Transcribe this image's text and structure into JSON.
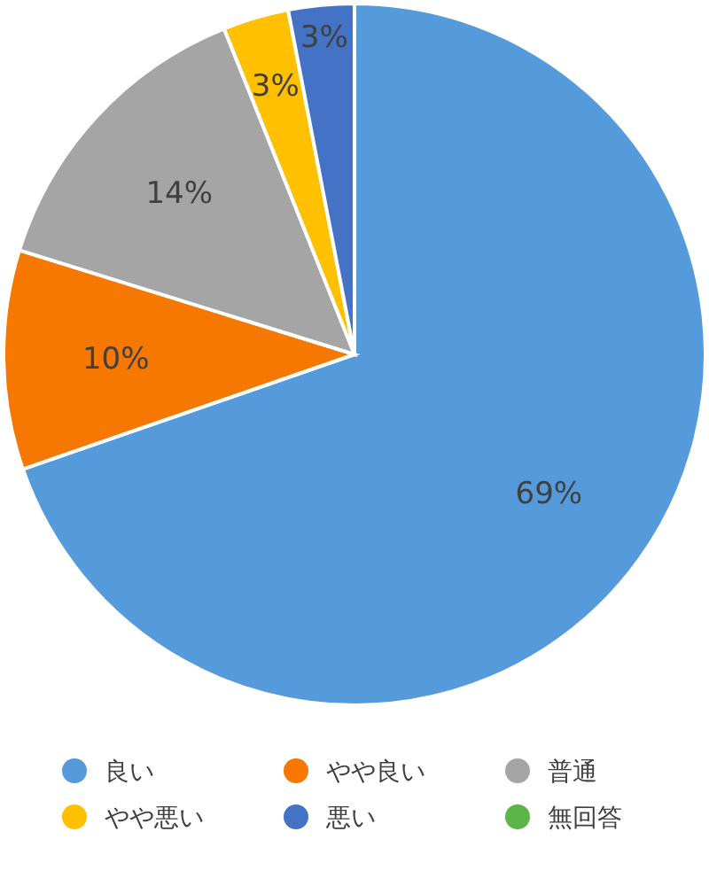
{
  "chart_data": {
    "type": "pie",
    "categories": [
      "良い",
      "やや良い",
      "普通",
      "やや悪い",
      "悪い",
      "無回答"
    ],
    "values": [
      69,
      10,
      14,
      3,
      3,
      0
    ],
    "colors": [
      "#559bdb",
      "#f77800",
      "#a5a5a5",
      "#ffc000",
      "#4472c4",
      "#5bb548"
    ],
    "value_labels": [
      "69%",
      "10%",
      "14%",
      "3%",
      "3%",
      null
    ],
    "legend": "bottom"
  }
}
